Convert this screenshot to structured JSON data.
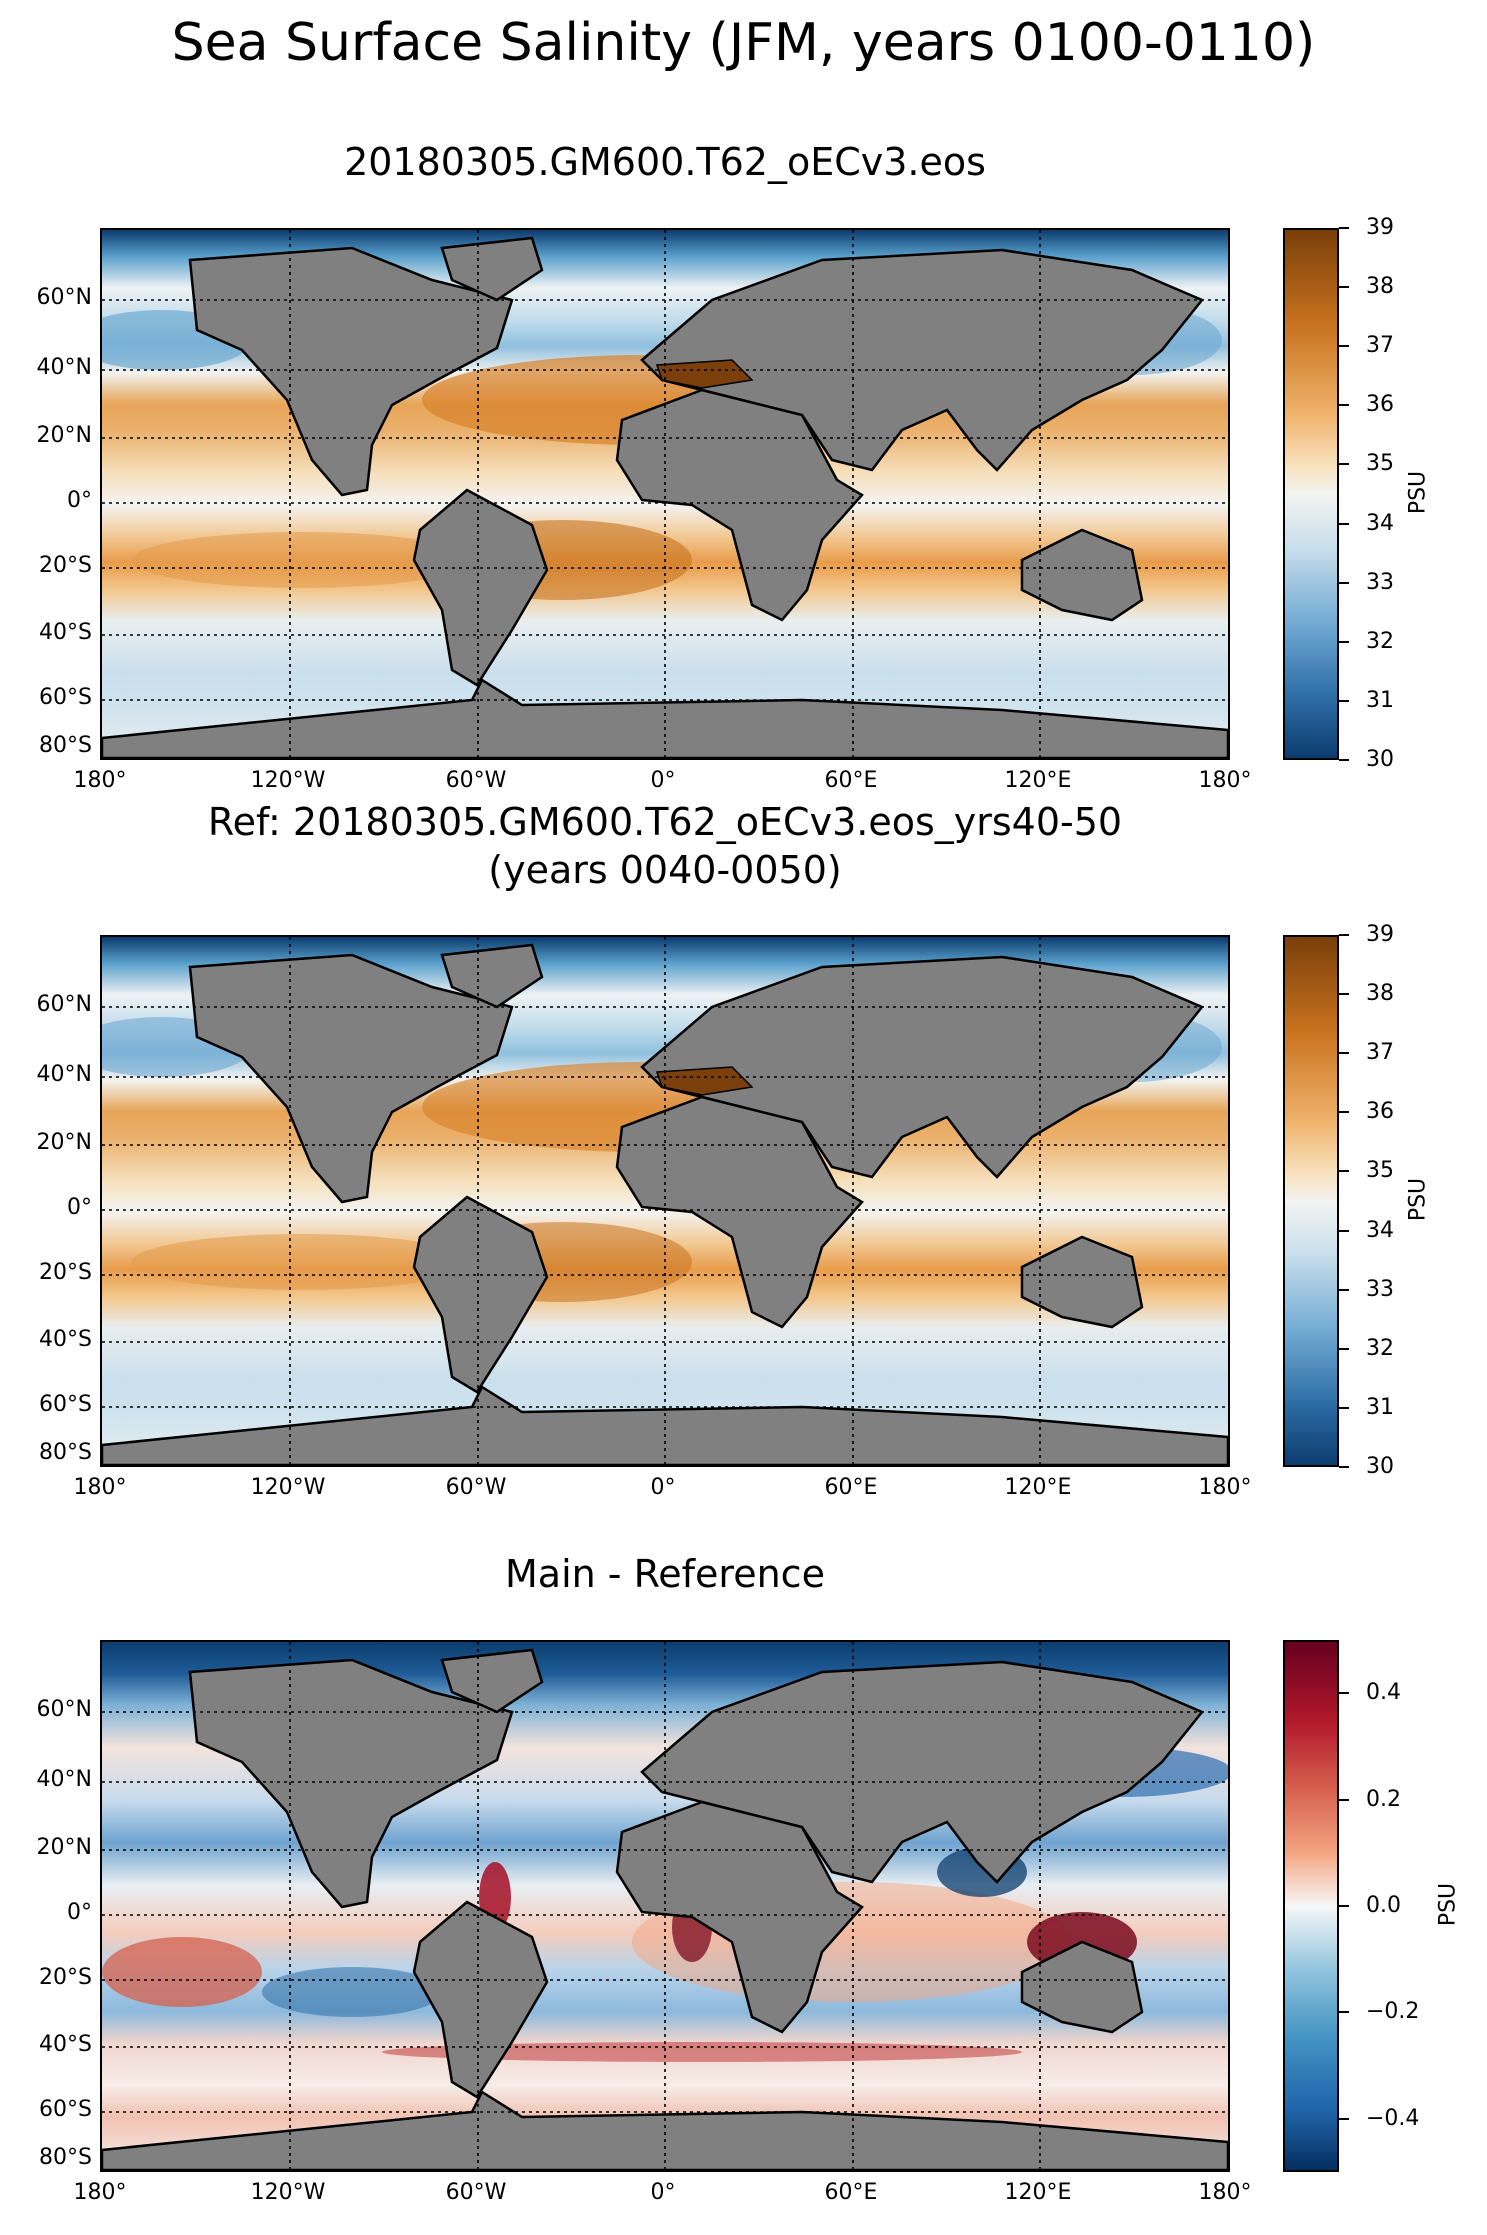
{
  "figure": {
    "title": "Sea Surface Salinity (JFM, years 0100-0110)"
  },
  "panels": [
    {
      "id": "main",
      "title": "20180305.GM600.T62_oECv3.eos",
      "colormap": "BrBG_r (blue-white-brown)",
      "colorbar": {
        "label": "PSU",
        "min": 30,
        "max": 39,
        "ticks": [
          "30",
          "31",
          "32",
          "33",
          "34",
          "35",
          "36",
          "37",
          "38",
          "39"
        ]
      }
    },
    {
      "id": "reference",
      "title": "Ref: 20180305.GM600.T62_oECv3.eos_yrs40-50",
      "subtitle": "(years 0040-0050)",
      "colormap": "BrBG_r (blue-white-brown)",
      "colorbar": {
        "label": "PSU",
        "min": 30,
        "max": 39,
        "ticks": [
          "30",
          "31",
          "32",
          "33",
          "34",
          "35",
          "36",
          "37",
          "38",
          "39"
        ]
      }
    },
    {
      "id": "difference",
      "title": "Main - Reference",
      "colormap": "RdBu_r (blue-white-red)",
      "colorbar": {
        "label": "PSU",
        "min": -0.5,
        "max": 0.5,
        "ticks": [
          "−0.4",
          "−0.2",
          "0.0",
          "0.2",
          "0.4"
        ]
      }
    }
  ],
  "axes": {
    "lon_ticks": [
      "180°",
      "120°W",
      "60°W",
      "0°",
      "60°E",
      "120°E",
      "180°"
    ],
    "lat_ticks": [
      "60°N",
      "40°N",
      "20°N",
      "0°",
      "20°S",
      "40°S",
      "60°S",
      "80°S"
    ]
  },
  "colors": {
    "land": "#808080",
    "brown_high": "#7a3f0a",
    "orange": "#d98a2e",
    "tan": "#f3c68a",
    "neutral": "#f2f2f0",
    "light_blue": "#c3ddec",
    "mid_blue": "#5aa0cc",
    "dark_blue": "#0b3c6e",
    "diff_red": "#7a0a1f",
    "diff_blue": "#0b3c6e"
  }
}
